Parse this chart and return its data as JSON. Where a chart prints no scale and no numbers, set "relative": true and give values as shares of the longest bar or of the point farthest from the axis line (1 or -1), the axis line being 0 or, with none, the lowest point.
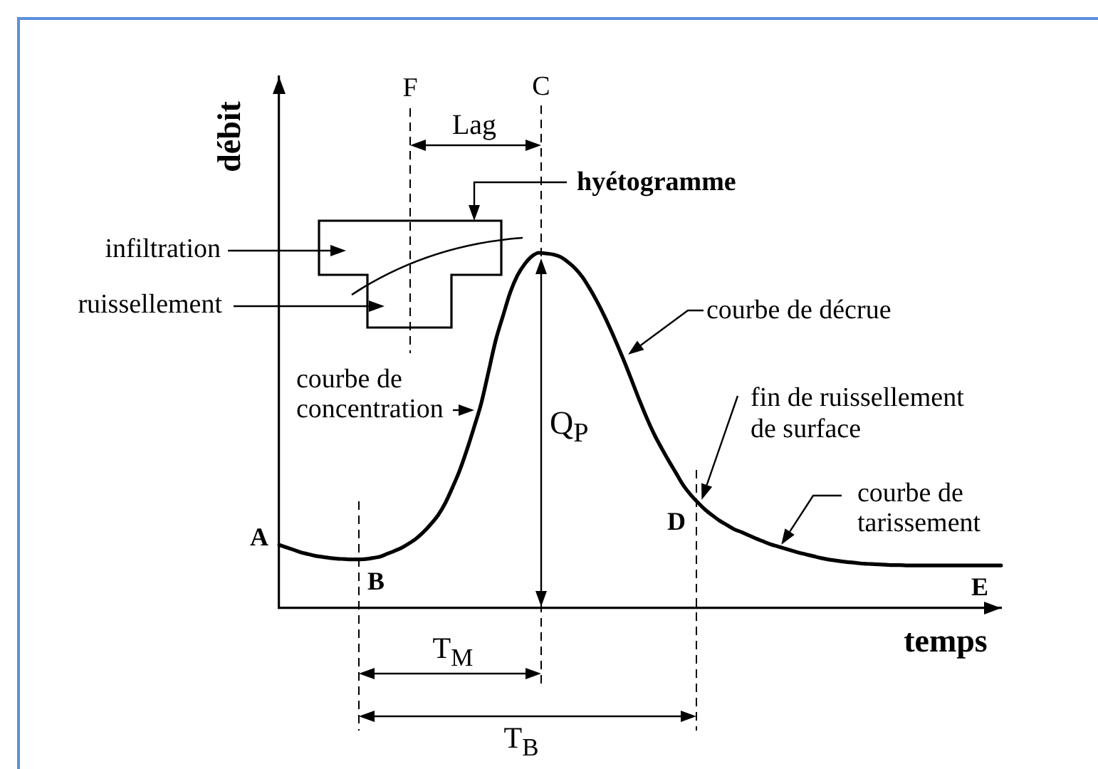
{
  "chart_data": {
    "type": "line",
    "relative": true,
    "xlabel": "temps",
    "ylabel": "débit",
    "tick_labels": false,
    "categories": [
      null,
      null,
      null,
      null,
      null,
      null,
      null,
      null,
      null,
      null,
      null,
      null,
      null,
      null,
      null,
      null,
      null,
      null,
      null,
      null,
      null,
      null,
      null,
      null,
      null,
      null,
      null,
      null,
      null,
      null,
      null,
      null,
      null,
      null,
      null,
      null,
      null,
      null,
      null,
      null,
      null,
      null,
      null,
      null,
      null,
      null,
      null,
      null,
      null,
      null,
      null,
      null,
      null,
      null,
      null,
      null,
      null,
      null,
      null,
      null,
      null,
      null,
      null,
      null,
      null,
      null,
      null,
      null,
      null,
      null,
      null,
      null,
      null,
      null,
      null,
      null,
      null,
      null,
      null,
      null,
      null,
      null,
      null,
      null,
      null,
      null,
      null,
      null,
      null,
      null,
      null,
      null,
      null,
      null,
      null,
      null,
      null,
      null,
      null,
      null,
      null
    ],
    "series": [
      {
        "color": "#000000",
        "values": [
          0.178,
          0.171,
          0.164,
          0.157,
          0.152,
          0.147,
          0.144,
          0.141,
          0.139,
          0.138,
          0.137,
          0.137,
          0.138,
          0.141,
          0.145,
          0.153,
          0.161,
          0.17,
          0.182,
          0.196,
          0.214,
          0.236,
          0.261,
          0.295,
          0.339,
          0.387,
          0.445,
          0.509,
          0.577,
          0.665,
          0.754,
          0.822,
          0.888,
          0.936,
          0.968,
          0.99,
          1,
          0.998,
          0.995,
          0.988,
          0.974,
          0.956,
          0.932,
          0.9,
          0.864,
          0.824,
          0.78,
          0.733,
          0.684,
          0.632,
          0.58,
          0.531,
          0.487,
          0.449,
          0.413,
          0.379,
          0.345,
          0.319,
          0.297,
          0.277,
          0.261,
          0.246,
          0.234,
          0.222,
          0.214,
          0.205,
          0.196,
          0.188,
          0.18,
          0.174,
          0.168,
          0.162,
          0.156,
          0.151,
          0.146,
          0.141,
          0.137,
          0.134,
          0.131,
          0.129,
          0.127,
          0.125,
          0.124,
          0.123,
          0.122,
          0.121,
          0.121,
          0.12,
          0.12,
          0.12,
          0.12,
          0.12,
          0.12,
          0.12,
          0.12,
          0.12,
          0.12,
          0.12,
          0.12,
          0.12,
          0.12
        ]
      }
    ],
    "annotations": [
      "A",
      "B",
      "D",
      "E",
      "F",
      "C",
      "Lag",
      "hyétogramme",
      "infiltration",
      "ruissellement",
      "courbe de concentration",
      "courbe de décrue",
      "fin de ruissellement de surface",
      "courbe de tarissement",
      "Q$_{P}$",
      "T$_{M}$",
      "T$_{B}$"
    ]
  }
}
